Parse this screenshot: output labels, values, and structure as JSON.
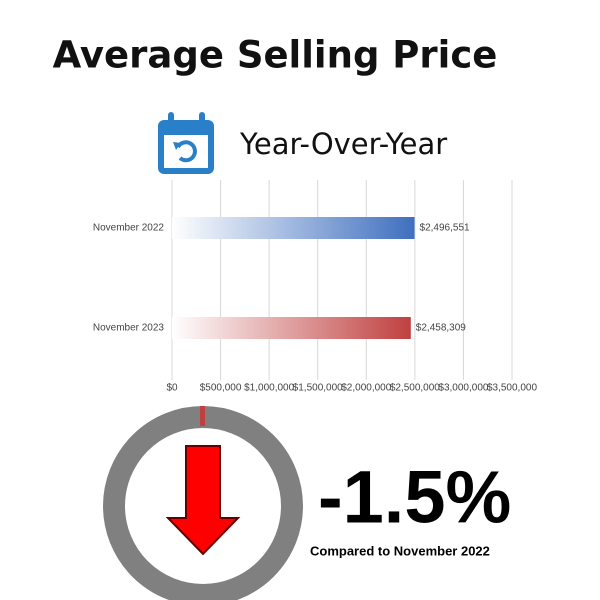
{
  "chart_data": {
    "type": "bar",
    "orientation": "horizontal",
    "title": "Average Selling Price",
    "subtitle": "Year-Over-Year",
    "categories": [
      "November 2022",
      "November 2023"
    ],
    "values": [
      2496551,
      2458309
    ],
    "value_labels": [
      "$2,496,551",
      "$2,458,309"
    ],
    "colors": [
      "#3f6fbf",
      "#c04040"
    ],
    "xlim": [
      0,
      3500000
    ],
    "xticks": [
      {
        "value": 0,
        "label": "$0"
      },
      {
        "value": 500000,
        "label": "$500,000"
      },
      {
        "value": 1000000,
        "label": "$1,000,000"
      },
      {
        "value": 1500000,
        "label": "$1,500,000"
      },
      {
        "value": 2000000,
        "label": "$2,000,000"
      },
      {
        "value": 2500000,
        "label": "$2,500,000"
      },
      {
        "value": 3000000,
        "label": "$3,000,000"
      },
      {
        "value": 3500000,
        "label": "$3,500,000"
      }
    ],
    "grid": true,
    "annotations": [
      "-1.5%",
      "Compared to November 2022"
    ]
  }
}
